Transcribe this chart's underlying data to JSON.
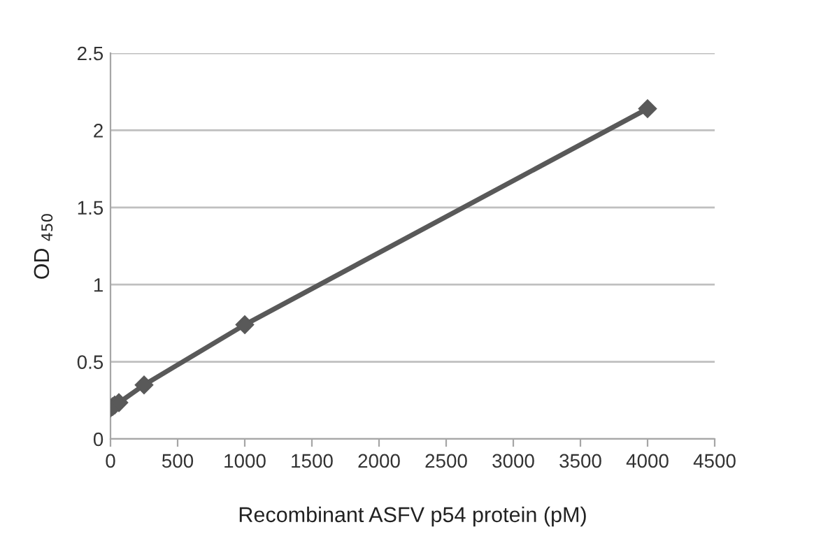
{
  "chart_data": {
    "type": "line",
    "xlabel": "Recombinant ASFV p54 protein (pM)",
    "ylabel": "OD $_{450}$",
    "x": [
      0,
      15.6,
      31.25,
      62.5,
      250,
      1000,
      4000
    ],
    "series": [
      {
        "color": "#595959",
        "values": [
          0.2,
          0.21,
          0.22,
          0.235,
          0.35,
          0.74,
          2.14
        ]
      }
    ],
    "xlim": [
      0,
      4500
    ],
    "xticks": [
      0,
      500,
      1000,
      1500,
      2000,
      2500,
      3000,
      3500,
      4000,
      4500
    ],
    "ylim": [
      0,
      2.5
    ],
    "yticks": [
      0,
      0.5,
      1,
      1.5,
      2,
      2.5
    ],
    "grid": "y",
    "marker": "diamond",
    "line_style": "solid"
  }
}
